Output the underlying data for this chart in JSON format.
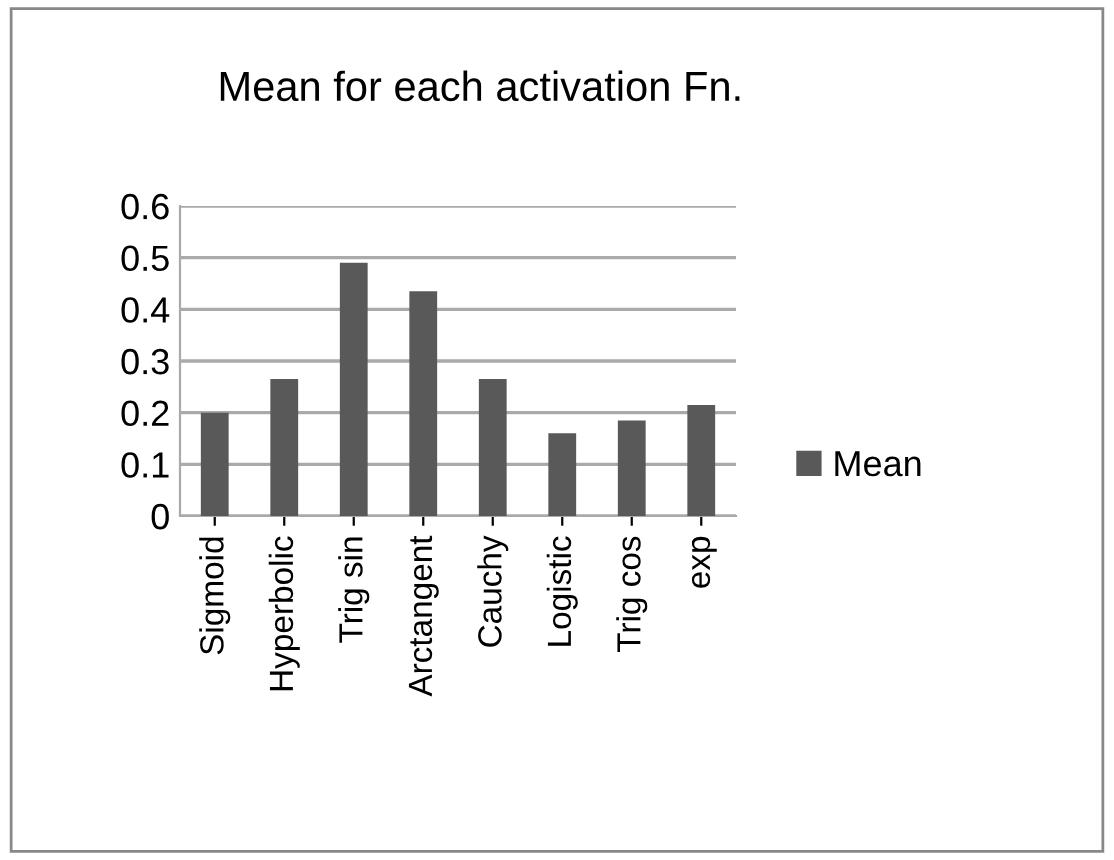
{
  "chart_data": {
    "type": "bar",
    "title": "Mean for each activation Fn.",
    "categories": [
      "Sigmoid",
      "Hyperbolic",
      "Trig sin",
      "Arctangent",
      "Cauchy",
      "Logistic",
      "Trig cos",
      "exp"
    ],
    "series": [
      {
        "name": "Mean",
        "color": "#595959",
        "values": [
          0.2,
          0.265,
          0.49,
          0.435,
          0.265,
          0.16,
          0.185,
          0.215
        ]
      }
    ],
    "ylim": [
      0,
      0.6
    ],
    "yticks": [
      0,
      {
        "value": 0.1,
        "label": "0.1"
      },
      {
        "value": 0.2,
        "label": "0.2"
      },
      {
        "value": 0.3,
        "label": "0.3"
      },
      {
        "value": 0.4,
        "label": "0.4"
      },
      {
        "value": 0.5,
        "label": "0.5"
      },
      {
        "value": 0.6,
        "label": "0.6"
      }
    ],
    "grid": "y",
    "legend": "right"
  }
}
